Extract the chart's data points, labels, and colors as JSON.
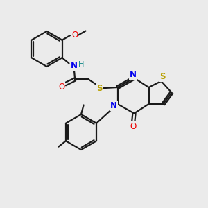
{
  "bg_color": "#ebebeb",
  "bond_color": "#1a1a1a",
  "N_color": "#0000ee",
  "O_color": "#ee0000",
  "S_color": "#b8a000",
  "H_color": "#008080",
  "lw": 1.6,
  "figsize": [
    3.0,
    3.0
  ],
  "dpi": 100,
  "xlim": [
    0,
    10
  ],
  "ylim": [
    0,
    10
  ]
}
